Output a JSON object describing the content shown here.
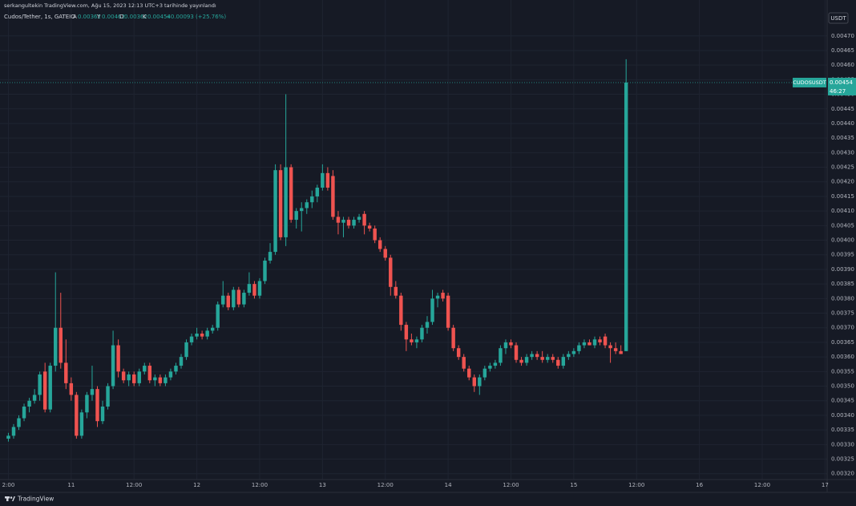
{
  "header": {
    "published": "serkangultekin TradingView.com, Ağu 15, 2023 12:13 UTC+3 tarihinde yayınlandı",
    "symbol": "Cudos/Tether, 1s, GATEIO",
    "open_label": "A",
    "high_label": "Y",
    "low_label": "D",
    "close_label": "K",
    "change": "+0.00093 (+25.76%)",
    "currency": "USDT",
    "countdown": "46:27",
    "brand": "TradingView"
  },
  "chart_data": {
    "type": "candlestick",
    "up_color": "#26a69a",
    "down_color": "#ef5350",
    "grid": true,
    "xlim": [
      -1.6,
      156.4
    ],
    "xticks": [
      {
        "value": 0,
        "label": "2:00"
      },
      {
        "value": 12,
        "label": "11"
      },
      {
        "value": 24,
        "label": "12:00"
      },
      {
        "value": 36,
        "label": "12"
      },
      {
        "value": 48,
        "label": "12:00"
      },
      {
        "value": 60,
        "label": "13"
      },
      {
        "value": 72,
        "label": "12:00"
      },
      {
        "value": 84,
        "label": "14"
      },
      {
        "value": 96,
        "label": "12:00"
      },
      {
        "value": 108,
        "label": "15"
      },
      {
        "value": 120,
        "label": "12:00"
      },
      {
        "value": 132,
        "label": "16"
      },
      {
        "value": 144,
        "label": "12:00"
      },
      {
        "value": 156,
        "label": "17"
      }
    ],
    "ylim": [
      0.00318,
      0.00479
    ],
    "yticks": [
      {
        "value": 0.0032,
        "label": "0.00320"
      },
      {
        "value": 0.00325,
        "label": "0.00325"
      },
      {
        "value": 0.0033,
        "label": "0.00330"
      },
      {
        "value": 0.00335,
        "label": "0.00335"
      },
      {
        "value": 0.0034,
        "label": "0.00340"
      },
      {
        "value": 0.00345,
        "label": "0.00345"
      },
      {
        "value": 0.0035,
        "label": "0.00350"
      },
      {
        "value": 0.00355,
        "label": "0.00355"
      },
      {
        "value": 0.0036,
        "label": "0.00360"
      },
      {
        "value": 0.00365,
        "label": "0.00365"
      },
      {
        "value": 0.0037,
        "label": "0.00370"
      },
      {
        "value": 0.00375,
        "label": "0.00375"
      },
      {
        "value": 0.0038,
        "label": "0.00380"
      },
      {
        "value": 0.00385,
        "label": "0.00385"
      },
      {
        "value": 0.0039,
        "label": "0.00390"
      },
      {
        "value": 0.00395,
        "label": "0.00395"
      },
      {
        "value": 0.004,
        "label": "0.00400"
      },
      {
        "value": 0.00405,
        "label": "0.00405"
      },
      {
        "value": 0.0041,
        "label": "0.00410"
      },
      {
        "value": 0.00415,
        "label": "0.00415"
      },
      {
        "value": 0.0042,
        "label": "0.00420"
      },
      {
        "value": 0.00425,
        "label": "0.00425"
      },
      {
        "value": 0.0043,
        "label": "0.00430"
      },
      {
        "value": 0.00435,
        "label": "0.00435"
      },
      {
        "value": 0.0044,
        "label": "0.00440"
      },
      {
        "value": 0.00445,
        "label": "0.00445"
      },
      {
        "value": 0.0045,
        "label": "0.00450"
      },
      {
        "value": 0.00455,
        "label": "0.00455"
      },
      {
        "value": 0.0046,
        "label": "0.00460"
      },
      {
        "value": 0.00465,
        "label": "0.00465"
      },
      {
        "value": 0.0047,
        "label": "0.00470"
      }
    ],
    "series": [
      {
        "name": "CUDOSUSDT",
        "open": [
          0.00332,
          0.00333,
          0.00336,
          0.00339,
          0.00343,
          0.00345,
          0.00347,
          0.00355,
          0.00342,
          0.00357,
          0.0037,
          0.00358,
          0.00351,
          0.00347,
          0.00333,
          0.00341,
          0.00347,
          0.00349,
          0.00338,
          0.00343,
          0.0035,
          0.00364,
          0.00355,
          0.00352,
          0.00354,
          0.00351,
          0.00355,
          0.00357,
          0.00352,
          0.00353,
          0.00351,
          0.00353,
          0.00355,
          0.00357,
          0.0036,
          0.00365,
          0.00367,
          0.00368,
          0.00367,
          0.00369,
          0.0037,
          0.00378,
          0.00381,
          0.00377,
          0.00383,
          0.00378,
          0.00382,
          0.00385,
          0.00381,
          0.00386,
          0.00393,
          0.00396,
          0.00424,
          0.00401,
          0.00425,
          0.00407,
          0.0041,
          0.00411,
          0.00413,
          0.00415,
          0.00418,
          0.00423,
          0.00422,
          0.00408,
          0.00406,
          0.00407,
          0.00405,
          0.00407,
          0.00409,
          0.00405,
          0.00404,
          0.004,
          0.00397,
          0.00394,
          0.00384,
          0.00381,
          0.00371,
          0.00366,
          0.00365,
          0.00366,
          0.0037,
          0.00372,
          0.0038,
          0.00382,
          0.00381,
          0.0037,
          0.00363,
          0.0036,
          0.00356,
          0.00353,
          0.0035,
          0.00353,
          0.00356,
          0.00357,
          0.00358,
          0.00363,
          0.00365,
          0.00364,
          0.00359,
          0.00358,
          0.0036,
          0.00361,
          0.0036,
          0.00359,
          0.0036,
          0.00359,
          0.00357,
          0.0036,
          0.00361,
          0.00362,
          0.00364,
          0.00365,
          0.00364,
          0.00366,
          0.00367,
          0.00364,
          0.00363,
          0.00362,
          0.00362
        ],
        "high": [
          0.00334,
          0.00337,
          0.0034,
          0.00344,
          0.00346,
          0.00349,
          0.00355,
          0.00358,
          0.00358,
          0.00389,
          0.00382,
          0.00366,
          0.00353,
          0.00348,
          0.00342,
          0.00348,
          0.00357,
          0.0035,
          0.00345,
          0.00351,
          0.00369,
          0.00366,
          0.00356,
          0.00355,
          0.00355,
          0.00356,
          0.00358,
          0.00358,
          0.00354,
          0.00354,
          0.00354,
          0.00356,
          0.00358,
          0.00361,
          0.00366,
          0.00368,
          0.0037,
          0.00369,
          0.0037,
          0.00371,
          0.00379,
          0.00386,
          0.00382,
          0.00384,
          0.00384,
          0.00383,
          0.00389,
          0.00386,
          0.00387,
          0.00394,
          0.00399,
          0.00426,
          0.00426,
          0.0045,
          0.00426,
          0.00411,
          0.00413,
          0.00414,
          0.00417,
          0.00419,
          0.00426,
          0.00425,
          0.00424,
          0.0041,
          0.00408,
          0.00408,
          0.00408,
          0.00409,
          0.0041,
          0.00406,
          0.00405,
          0.00401,
          0.00398,
          0.00395,
          0.00386,
          0.00382,
          0.00372,
          0.00368,
          0.00367,
          0.00371,
          0.00374,
          0.00383,
          0.00382,
          0.00383,
          0.00382,
          0.00371,
          0.00364,
          0.00361,
          0.00357,
          0.00354,
          0.00354,
          0.00357,
          0.00358,
          0.00359,
          0.00364,
          0.00366,
          0.00366,
          0.00365,
          0.0036,
          0.00361,
          0.00362,
          0.00362,
          0.00362,
          0.00361,
          0.00361,
          0.0036,
          0.00361,
          0.00362,
          0.00363,
          0.00365,
          0.00366,
          0.00366,
          0.00367,
          0.00367,
          0.00368,
          0.00365,
          0.00365,
          0.00364,
          0.00462
        ],
        "low": [
          0.00331,
          0.00332,
          0.00335,
          0.00338,
          0.00341,
          0.00344,
          0.00345,
          0.00341,
          0.00341,
          0.00355,
          0.00356,
          0.00349,
          0.00345,
          0.00332,
          0.00332,
          0.00339,
          0.00345,
          0.00336,
          0.00337,
          0.00342,
          0.00349,
          0.00353,
          0.00351,
          0.0035,
          0.0035,
          0.0035,
          0.00354,
          0.00351,
          0.0035,
          0.0035,
          0.0035,
          0.00352,
          0.00354,
          0.00356,
          0.00359,
          0.00364,
          0.00366,
          0.00366,
          0.00366,
          0.00368,
          0.00369,
          0.00377,
          0.00376,
          0.00376,
          0.00377,
          0.00377,
          0.00381,
          0.0038,
          0.0038,
          0.00385,
          0.00392,
          0.00395,
          0.004,
          0.00398,
          0.00406,
          0.00404,
          0.00403,
          0.00409,
          0.00411,
          0.00413,
          0.00417,
          0.00417,
          0.00407,
          0.00402,
          0.00401,
          0.00404,
          0.00404,
          0.00406,
          0.00402,
          0.00403,
          0.00399,
          0.00396,
          0.00393,
          0.00381,
          0.0038,
          0.00369,
          0.00362,
          0.00364,
          0.00363,
          0.00365,
          0.00368,
          0.00371,
          0.00377,
          0.00379,
          0.00369,
          0.00362,
          0.00359,
          0.00355,
          0.00352,
          0.00348,
          0.00347,
          0.00352,
          0.00355,
          0.00356,
          0.00357,
          0.00361,
          0.00363,
          0.00358,
          0.00357,
          0.00357,
          0.00359,
          0.00359,
          0.00358,
          0.00358,
          0.00358,
          0.00356,
          0.00356,
          0.00359,
          0.0036,
          0.00361,
          0.00363,
          0.00364,
          0.00363,
          0.00364,
          0.00363,
          0.00358,
          0.00361,
          0.00361,
          0.00362
        ],
        "close": [
          0.00333,
          0.00336,
          0.00339,
          0.00343,
          0.00345,
          0.00347,
          0.00354,
          0.00342,
          0.00357,
          0.0037,
          0.00358,
          0.00351,
          0.00347,
          0.00333,
          0.00341,
          0.00347,
          0.00349,
          0.00338,
          0.00343,
          0.0035,
          0.00364,
          0.00355,
          0.00352,
          0.00354,
          0.00351,
          0.00355,
          0.00357,
          0.00352,
          0.00353,
          0.00351,
          0.00353,
          0.00355,
          0.00357,
          0.0036,
          0.00365,
          0.00367,
          0.00368,
          0.00367,
          0.00369,
          0.0037,
          0.00378,
          0.00381,
          0.00377,
          0.00383,
          0.00378,
          0.00382,
          0.00385,
          0.00381,
          0.00386,
          0.00393,
          0.00396,
          0.00424,
          0.00401,
          0.00425,
          0.00407,
          0.0041,
          0.00411,
          0.00413,
          0.00415,
          0.00418,
          0.00423,
          0.00418,
          0.00408,
          0.00406,
          0.00407,
          0.00405,
          0.00407,
          0.00408,
          0.00405,
          0.00404,
          0.004,
          0.00397,
          0.00394,
          0.00384,
          0.00381,
          0.00371,
          0.00366,
          0.00365,
          0.00366,
          0.0037,
          0.00372,
          0.0038,
          0.00381,
          0.0038,
          0.0037,
          0.00363,
          0.0036,
          0.00356,
          0.00353,
          0.0035,
          0.00353,
          0.00356,
          0.00357,
          0.00358,
          0.00363,
          0.00365,
          0.00364,
          0.00359,
          0.00358,
          0.0036,
          0.00361,
          0.0036,
          0.00359,
          0.0036,
          0.00359,
          0.00357,
          0.0036,
          0.00361,
          0.00362,
          0.00364,
          0.00365,
          0.00364,
          0.00366,
          0.00365,
          0.00364,
          0.00363,
          0.00362,
          0.00361,
          0.00454
        ]
      }
    ]
  }
}
